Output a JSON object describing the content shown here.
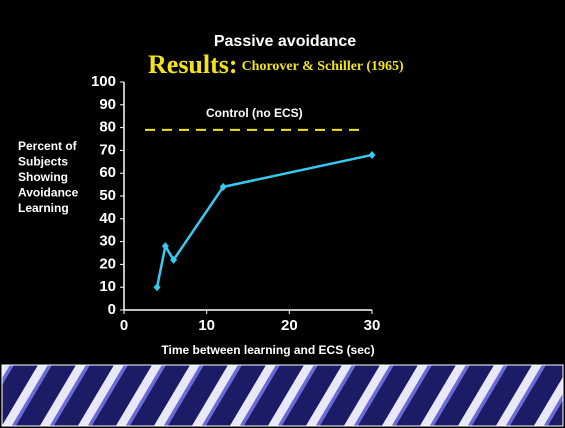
{
  "chart_data": {
    "type": "line",
    "title": "Passive avoidance",
    "subtitle": {
      "lead": "Results:",
      "source": "Chorover & Schiller (1965)"
    },
    "y_label": [
      "Percent of",
      "Subjects",
      "Showing",
      "Avoidance",
      "Learning"
    ],
    "x_label": "Time between learning and ECS (sec)",
    "x": [
      4,
      5,
      6,
      12,
      30
    ],
    "series": [
      {
        "color": "#38c8f0",
        "values": [
          10,
          28,
          22,
          54,
          68
        ]
      }
    ],
    "reference_line": {
      "label": "Control  (no ECS)",
      "value": 79,
      "color": "#f2e21a"
    },
    "xlim": [
      0,
      30
    ],
    "xticks": [
      0,
      10,
      20,
      30
    ],
    "ylim": [
      0,
      100
    ],
    "yticks": [
      0,
      10,
      20,
      30,
      40,
      50,
      60,
      70,
      80,
      90,
      100
    ]
  }
}
